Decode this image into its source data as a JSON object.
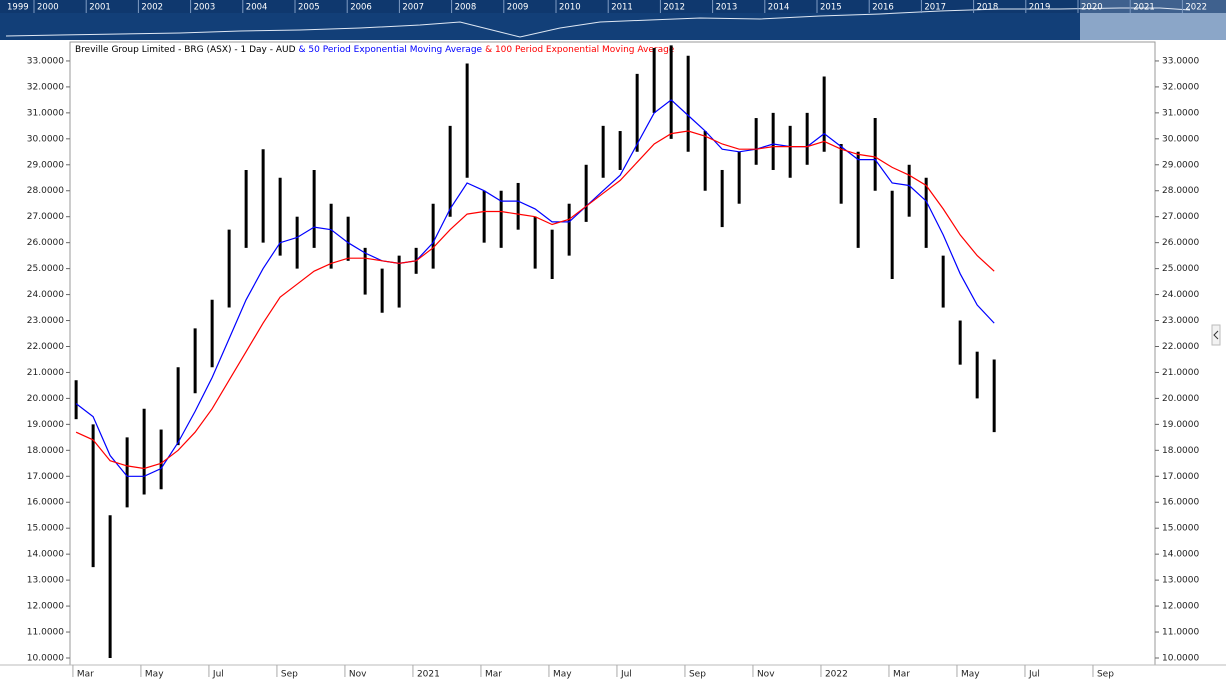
{
  "navigator": {
    "years": [
      "1999",
      "2000",
      "2001",
      "2002",
      "2003",
      "2004",
      "2005",
      "2006",
      "2007",
      "2008",
      "2009",
      "2010",
      "2011",
      "2012",
      "2013",
      "2014",
      "2015",
      "2016",
      "2017",
      "2018",
      "2019",
      "2020",
      "2021",
      "2022"
    ]
  },
  "chart_data": {
    "type": "line",
    "title": "Breville Group Limited - BRG (ASX) - 1 Day - AUD",
    "price": {
      "color": "#000000",
      "high": [
        20.7,
        19.0,
        15.5,
        18.5,
        19.6,
        18.8,
        21.2,
        22.7,
        23.8,
        26.5,
        28.8,
        29.6,
        28.5,
        27.0,
        28.8,
        27.5,
        27.0,
        25.8,
        25.0,
        25.5,
        25.8,
        27.5,
        30.5,
        32.9,
        28.0,
        28.0,
        28.3,
        27.0,
        26.5,
        27.5,
        29.0,
        30.5,
        30.3,
        32.5,
        33.5,
        33.6,
        33.2,
        30.3,
        28.8,
        29.5,
        30.8,
        31.0,
        30.5,
        31.0,
        32.4,
        29.8,
        29.5,
        30.8,
        28.0,
        29.0,
        28.5,
        25.5,
        23.0,
        21.8,
        21.5
      ],
      "low": [
        19.2,
        13.5,
        10.0,
        15.8,
        16.3,
        16.5,
        18.2,
        20.2,
        21.2,
        23.5,
        25.8,
        26.0,
        25.5,
        25.0,
        25.8,
        25.0,
        25.3,
        24.0,
        23.3,
        23.5,
        24.8,
        25.0,
        27.0,
        28.5,
        26.0,
        25.8,
        26.5,
        25.0,
        24.6,
        25.5,
        26.8,
        28.5,
        28.8,
        29.5,
        31.0,
        30.0,
        29.5,
        28.0,
        26.6,
        27.5,
        29.0,
        28.8,
        28.5,
        29.0,
        29.5,
        27.5,
        25.8,
        28.0,
        24.6,
        27.0,
        25.8,
        23.5,
        21.3,
        20.0,
        18.7
      ]
    },
    "x": [
      1.8,
      2.3,
      2.8,
      3.3,
      3.8,
      4.3,
      4.8,
      5.3,
      5.8,
      6.3,
      6.8,
      7.3,
      7.8,
      8.3,
      8.8,
      9.3,
      9.8,
      10.3,
      10.8,
      11.3,
      11.8,
      12.3,
      12.8,
      13.3,
      13.8,
      14.3,
      14.8,
      15.3,
      15.8,
      16.3,
      16.8,
      17.3,
      17.8,
      18.3,
      18.8,
      19.3,
      19.8,
      20.3,
      20.8,
      21.3,
      21.8,
      22.3,
      22.8,
      23.3,
      23.8,
      24.3,
      24.8,
      25.3,
      25.8,
      26.3,
      26.8,
      27.3,
      27.8,
      28.3,
      28.8
    ],
    "series": [
      {
        "name": "& 50 Period Exponential Moving Average",
        "color": "#0000ff",
        "values": [
          19.8,
          19.3,
          17.8,
          17.0,
          17.0,
          17.3,
          18.3,
          19.5,
          20.8,
          22.3,
          23.8,
          25.0,
          26.0,
          26.2,
          26.6,
          26.5,
          26.0,
          25.6,
          25.3,
          25.2,
          25.3,
          26.0,
          27.3,
          28.3,
          28.0,
          27.6,
          27.6,
          27.3,
          26.8,
          26.8,
          27.4,
          28.0,
          28.6,
          29.8,
          31.0,
          31.5,
          30.9,
          30.3,
          29.6,
          29.5,
          29.6,
          29.8,
          29.7,
          29.7,
          30.2,
          29.7,
          29.2,
          29.2,
          28.3,
          28.2,
          27.6,
          26.3,
          24.8,
          23.6,
          22.9
        ]
      },
      {
        "name": "& 100 Period Exponential Moving Average",
        "color": "#ff0000",
        "values": [
          18.7,
          18.4,
          17.6,
          17.4,
          17.3,
          17.5,
          18.0,
          18.7,
          19.6,
          20.7,
          21.8,
          22.9,
          23.9,
          24.4,
          24.9,
          25.2,
          25.4,
          25.4,
          25.3,
          25.2,
          25.3,
          25.8,
          26.5,
          27.1,
          27.2,
          27.2,
          27.1,
          27.0,
          26.7,
          26.9,
          27.4,
          27.9,
          28.4,
          29.1,
          29.8,
          30.2,
          30.3,
          30.1,
          29.8,
          29.6,
          29.6,
          29.7,
          29.7,
          29.7,
          29.9,
          29.6,
          29.4,
          29.3,
          28.9,
          28.6,
          28.2,
          27.3,
          26.3,
          25.5,
          24.9
        ]
      }
    ],
    "xlim": [
      1.62,
      33.53
    ],
    "xticks": [
      {
        "value": 2,
        "label": "Mar"
      },
      {
        "value": 4,
        "label": "May"
      },
      {
        "value": 6,
        "label": "Jul"
      },
      {
        "value": 8,
        "label": "Sep"
      },
      {
        "value": 10,
        "label": "Nov"
      },
      {
        "value": 12,
        "label": "2021"
      },
      {
        "value": 14,
        "label": "Mar"
      },
      {
        "value": 16,
        "label": "May"
      },
      {
        "value": 18,
        "label": "Jul"
      },
      {
        "value": 20,
        "label": "Sep"
      },
      {
        "value": 22,
        "label": "Nov"
      },
      {
        "value": 24,
        "label": "2022"
      },
      {
        "value": 26,
        "label": "Mar"
      },
      {
        "value": 28,
        "label": "May"
      },
      {
        "value": 30,
        "label": "Jul"
      },
      {
        "value": 32,
        "label": "Sep"
      }
    ],
    "ylim": [
      9.73,
      33.73
    ],
    "yticks": [
      {
        "value": 10,
        "label": "10.0000"
      },
      {
        "value": 11,
        "label": "11.0000"
      },
      {
        "value": 12,
        "label": "12.0000"
      },
      {
        "value": 13,
        "label": "13.0000"
      },
      {
        "value": 14,
        "label": "14.0000"
      },
      {
        "value": 15,
        "label": "15.0000"
      },
      {
        "value": 16,
        "label": "16.0000"
      },
      {
        "value": 17,
        "label": "17.0000"
      },
      {
        "value": 18,
        "label": "18.0000"
      },
      {
        "value": 19,
        "label": "19.0000"
      },
      {
        "value": 20,
        "label": "20.0000"
      },
      {
        "value": 21,
        "label": "21.0000"
      },
      {
        "value": 22,
        "label": "22.0000"
      },
      {
        "value": 23,
        "label": "23.0000"
      },
      {
        "value": 24,
        "label": "24.0000"
      },
      {
        "value": 25,
        "label": "25.0000"
      },
      {
        "value": 26,
        "label": "26.0000"
      },
      {
        "value": 27,
        "label": "27.0000"
      },
      {
        "value": 28,
        "label": "28.0000"
      },
      {
        "value": 29,
        "label": "29.0000"
      },
      {
        "value": 30,
        "label": "30.0000"
      },
      {
        "value": 31,
        "label": "31.0000"
      },
      {
        "value": 32,
        "label": "32.0000"
      },
      {
        "value": 33,
        "label": "33.0000"
      }
    ],
    "grid": false
  }
}
